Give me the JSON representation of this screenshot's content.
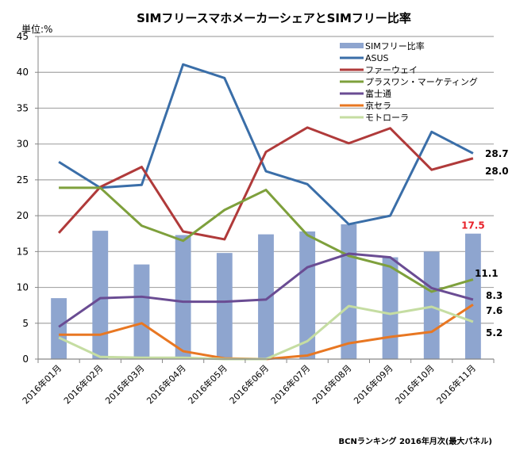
{
  "chart_data": {
    "type": "bar+line",
    "title": "SIMフリースマホメーカーシェアとSIMフリー比率",
    "unit_label": "単位:%",
    "source": "BCNランキング 2016年月次(最大パネル)",
    "ylim": [
      0,
      45
    ],
    "yticks": [
      "0",
      "5",
      "10",
      "15",
      "20",
      "25",
      "30",
      "35",
      "40",
      "45"
    ],
    "grid": true,
    "legend_position": "top-right",
    "categories": [
      "2016年01月",
      "2016年02月",
      "2016年03月",
      "2016年04月",
      "2016年05月",
      "2016年06月",
      "2016年07月",
      "2016年08月",
      "2016年09月",
      "2016年10月",
      "2016年11月"
    ],
    "bars": {
      "name": "SIMフリー比率",
      "color": "#8EA5CF",
      "values": [
        8.5,
        17.9,
        13.2,
        17.3,
        14.8,
        17.4,
        17.8,
        18.8,
        14.2,
        15.0,
        17.5
      ],
      "end_label": "17.5",
      "end_label_color": "#E8222A"
    },
    "series": [
      {
        "name": "ASUS",
        "color": "#3A6EA8",
        "values": [
          27.5,
          23.9,
          24.3,
          41.1,
          39.2,
          26.2,
          24.4,
          18.8,
          20.0,
          31.7,
          28.7
        ],
        "end_label": "28.7"
      },
      {
        "name": "ファーウェイ",
        "color": "#B03A3A",
        "values": [
          17.6,
          24.0,
          26.8,
          17.8,
          16.7,
          28.9,
          32.3,
          30.1,
          32.2,
          26.4,
          28.0
        ],
        "end_label": "28.0"
      },
      {
        "name": "プラスワン・マーケティング",
        "color": "#7EA03C",
        "values": [
          23.9,
          23.9,
          18.6,
          16.5,
          20.8,
          23.6,
          17.3,
          14.4,
          12.9,
          9.4,
          11.1
        ],
        "end_label": "11.1"
      },
      {
        "name": "富士通",
        "color": "#6A4C93",
        "values": [
          4.5,
          8.5,
          8.7,
          8.0,
          8.0,
          8.3,
          12.8,
          14.7,
          14.2,
          9.9,
          8.3
        ],
        "end_label": "8.3"
      },
      {
        "name": "京セラ",
        "color": "#E87722",
        "values": [
          3.4,
          3.4,
          5.0,
          1.1,
          0.1,
          0.0,
          0.5,
          2.2,
          3.1,
          3.8,
          7.6
        ],
        "end_label": "7.6"
      },
      {
        "name": "モトローラ",
        "color": "#C5DDA2",
        "values": [
          3.0,
          0.3,
          0.2,
          0.2,
          0.0,
          0.0,
          2.5,
          7.4,
          6.3,
          7.3,
          5.2
        ],
        "end_label": "5.2"
      }
    ]
  }
}
